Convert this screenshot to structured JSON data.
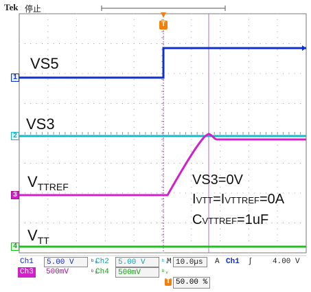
{
  "header": {
    "brand": "Tek",
    "status": "停止"
  },
  "markers": {
    "trigger_top": "T",
    "ch1": "1",
    "ch2": "2",
    "ch3": "3",
    "ch4": "4",
    "trigger_bottom": "T"
  },
  "labels": {
    "vs5": "VS5",
    "vs3": "VS3",
    "vttref_main": "V",
    "vttref_sub": "TTREF",
    "vtt_main": "V",
    "vtt_sub": "TT"
  },
  "annotation": {
    "line1": "VS3=0V",
    "line2_a": "I",
    "line2_b": "VTT",
    "line2_c": "=I",
    "line2_d": "VTTREF",
    "line2_e": "=0A",
    "line3_a": "C",
    "line3_b": "VTTREF",
    "line3_c": "=1uF"
  },
  "status_bar": {
    "row1": {
      "ch1_name": "Ch1",
      "ch1_scale": "5.00 V",
      "ch2_name": "Ch2",
      "ch2_scale": "5.00 V",
      "timebase_prefix": "M",
      "timebase": "10.0µs",
      "trigger_mode": "A",
      "trigger_source": "Ch1",
      "trigger_slope": "∫",
      "trigger_level": "4.00 V"
    },
    "row2": {
      "ch3_name": "Ch3",
      "ch3_scale": "500mV",
      "ch4_name": "Ch4",
      "ch4_scale": "500mV"
    },
    "trigger_position": "50.00 %"
  },
  "colors": {
    "ch1": "#1030c8",
    "ch2": "#18b8c8",
    "ch3": "#d020c8",
    "ch4": "#20c020",
    "trigger": "#f08010",
    "grid": "#9a9a9a"
  }
}
